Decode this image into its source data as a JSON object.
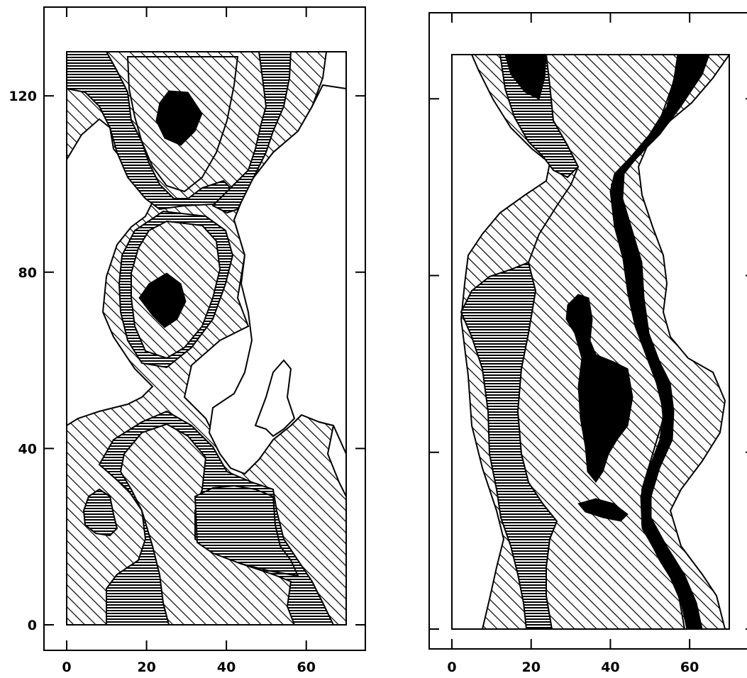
{
  "panels": [
    {
      "id": "left",
      "x_ticks": [
        {
          "value": 0,
          "label": "0"
        },
        {
          "value": 20,
          "label": "20"
        },
        {
          "value": 40,
          "label": "40"
        },
        {
          "value": 60,
          "label": "60"
        }
      ],
      "y_ticks": [
        {
          "value": 0,
          "label": "0"
        },
        {
          "value": 40,
          "label": "40"
        },
        {
          "value": 80,
          "label": "80"
        },
        {
          "value": 120,
          "label": "120"
        }
      ],
      "xlim": [
        0,
        70
      ],
      "ylim": [
        0,
        130
      ]
    },
    {
      "id": "right",
      "x_ticks": [
        {
          "value": 0,
          "label": "0"
        },
        {
          "value": 20,
          "label": "20"
        },
        {
          "value": 40,
          "label": "40"
        },
        {
          "value": 60,
          "label": "60"
        }
      ],
      "y_ticks": [
        {
          "value": 0,
          "label": ""
        },
        {
          "value": 40,
          "label": ""
        },
        {
          "value": 80,
          "label": ""
        },
        {
          "value": 120,
          "label": ""
        }
      ],
      "xlim": [
        0,
        70
      ],
      "ylim": [
        0,
        130
      ]
    }
  ],
  "fill_styles": {
    "diagonal_hatch": "#000000",
    "horizontal_hatch": "#000000",
    "solid": "#000000",
    "background": "#ffffff"
  }
}
